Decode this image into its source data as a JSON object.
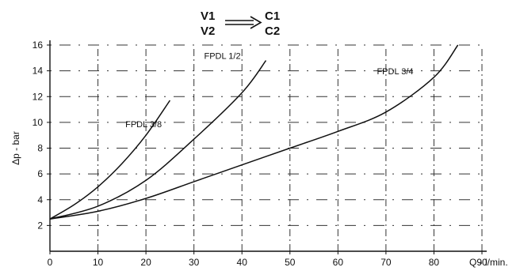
{
  "chart_data": {
    "type": "line",
    "xlabel": "Q - l/min.",
    "ylabel": "Δp - bar",
    "xlim": [
      0,
      90
    ],
    "ylim": [
      0,
      16
    ],
    "x_ticks": [
      0,
      10,
      20,
      30,
      40,
      50,
      60,
      70,
      80,
      90
    ],
    "y_ticks": [
      2,
      4,
      6,
      8,
      10,
      12,
      14,
      16
    ],
    "grid": "dash-dot",
    "legend": {
      "from": [
        "V1",
        "V2"
      ],
      "to": [
        "C1",
        "C2"
      ]
    },
    "series": [
      {
        "name": "FPDL 3/8",
        "points": [
          [
            0,
            2.5
          ],
          [
            5,
            3.6
          ],
          [
            10,
            5.0
          ],
          [
            15,
            6.8
          ],
          [
            20,
            9.0
          ],
          [
            25,
            11.7
          ]
        ]
      },
      {
        "name": "FPDL 1/2",
        "points": [
          [
            0,
            2.5
          ],
          [
            10,
            3.5
          ],
          [
            20,
            5.5
          ],
          [
            30,
            8.7
          ],
          [
            40,
            12.3
          ],
          [
            45,
            14.8
          ]
        ]
      },
      {
        "name": "FPDL 3/4",
        "points": [
          [
            0,
            2.5
          ],
          [
            10,
            3.1
          ],
          [
            20,
            4.1
          ],
          [
            30,
            5.4
          ],
          [
            40,
            6.7
          ],
          [
            50,
            8.0
          ],
          [
            60,
            9.3
          ],
          [
            70,
            10.8
          ],
          [
            80,
            13.5
          ],
          [
            85,
            16.0
          ]
        ]
      }
    ]
  }
}
